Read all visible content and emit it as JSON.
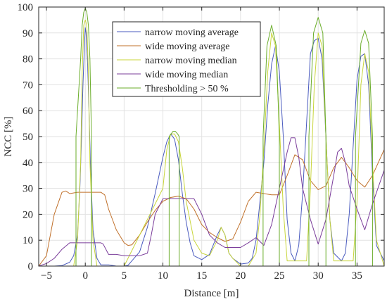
{
  "chart_data": {
    "type": "line",
    "title": "",
    "xlabel": "Distance [m]",
    "ylabel": "NCC [%]",
    "xlim": [
      -6,
      38.5
    ],
    "ylim": [
      0,
      100
    ],
    "xticks": [
      -5,
      0,
      5,
      10,
      15,
      20,
      25,
      30,
      35
    ],
    "yticks": [
      0,
      10,
      20,
      30,
      40,
      50,
      60,
      70,
      80,
      90,
      100
    ],
    "grid": true,
    "legend_position": "top-center",
    "series": [
      {
        "name": "narrow moving average",
        "color": "#4a5bbf",
        "x": [
          -6,
          -4,
          -3,
          -2,
          -1.5,
          -1,
          -0.7,
          -0.5,
          -0.3,
          -0.1,
          0,
          0.1,
          0.3,
          0.5,
          0.7,
          1,
          1.5,
          2,
          3,
          4,
          5,
          5.5,
          6,
          7,
          8,
          9,
          10,
          10.5,
          11,
          11.5,
          12,
          12.5,
          13,
          13.5,
          14,
          15,
          16,
          17,
          17.5,
          18,
          18.5,
          19,
          20,
          21,
          21.5,
          22,
          23,
          23.5,
          24,
          24.5,
          25,
          25.5,
          26,
          26.5,
          27,
          27.5,
          28,
          29,
          29.5,
          30,
          30.5,
          31,
          31.5,
          32,
          33,
          33.5,
          34,
          35,
          35.5,
          36,
          36.5,
          37,
          37.5,
          38.5
        ],
        "y": [
          0,
          0,
          0.2,
          1.5,
          4,
          12,
          30,
          48,
          70,
          86,
          92,
          90,
          78,
          58,
          36,
          14,
          3,
          0.5,
          0.5,
          0,
          0,
          0.3,
          2,
          5.5,
          15,
          28,
          42,
          48,
          51,
          49,
          41,
          28,
          17,
          9,
          4,
          2.5,
          4.5,
          12,
          15,
          12,
          5,
          3,
          0.8,
          1.2,
          3,
          10,
          40,
          62,
          78,
          85,
          75,
          50,
          18,
          5,
          2,
          8,
          28,
          82,
          87,
          88,
          80,
          50,
          18,
          5,
          2,
          5,
          20,
          72,
          81,
          82,
          70,
          35,
          8,
          2
        ]
      },
      {
        "name": "wide moving average",
        "color": "#c0702a",
        "x": [
          -6,
          -5,
          -4,
          -3,
          -2.5,
          -2,
          -1,
          0,
          1,
          2,
          2.5,
          3,
          4,
          5,
          5.5,
          6,
          7,
          8,
          9,
          10,
          11,
          12,
          13,
          14,
          15,
          16,
          17,
          18,
          19,
          20,
          21,
          22,
          23,
          24,
          25,
          26,
          27,
          28,
          29,
          30,
          31,
          32,
          33,
          34,
          35,
          36,
          37,
          38.5
        ],
        "y": [
          0,
          4,
          20,
          28.5,
          29,
          28,
          28.5,
          28.5,
          28.5,
          28.5,
          27.5,
          22,
          14,
          9,
          8,
          8.2,
          12,
          17,
          21.5,
          25,
          26.5,
          27,
          26,
          22,
          16,
          13,
          11,
          9.5,
          10.5,
          17,
          25,
          28.5,
          28,
          27.5,
          27.5,
          35,
          43,
          41,
          33,
          29.5,
          31,
          38,
          42,
          38,
          33,
          30.5,
          35,
          45
        ]
      },
      {
        "name": "narrow moving median",
        "color": "#c8d53a",
        "x": [
          -6,
          -1.5,
          -1,
          -0.6,
          -0.4,
          -0.2,
          0,
          0.2,
          0.4,
          0.6,
          1,
          1.5,
          5,
          10,
          10.5,
          11,
          11.5,
          12,
          12.5,
          13,
          14,
          15,
          16,
          17,
          17.5,
          18,
          18.5,
          19,
          20,
          21,
          22,
          22.5,
          23,
          23.5,
          24,
          24.5,
          25,
          25.5,
          26,
          28.5,
          29,
          29.5,
          30,
          30.5,
          31,
          31.5,
          32,
          34.5,
          35,
          35.5,
          36,
          36.5,
          37,
          37.5,
          38.5
        ],
        "y": [
          0,
          0,
          10,
          40,
          75,
          93,
          95,
          93,
          75,
          40,
          10,
          0,
          0,
          30,
          45,
          51,
          51,
          48,
          38,
          25,
          10,
          5,
          4,
          10,
          15,
          12,
          5,
          3,
          0,
          0,
          5,
          20,
          45,
          75,
          90,
          85,
          55,
          22,
          2,
          2,
          30,
          70,
          90,
          85,
          50,
          18,
          2,
          2,
          25,
          70,
          82,
          75,
          40,
          10,
          0
        ]
      },
      {
        "name": "wide moving median",
        "color": "#7a3c9a",
        "x": [
          -6,
          -5,
          -4,
          -3,
          -2,
          -1,
          0,
          1,
          2,
          2.3,
          3,
          4,
          5,
          6,
          7,
          8,
          8.5,
          9,
          10,
          11,
          12,
          13,
          14,
          15,
          16,
          17,
          18,
          19,
          20,
          21,
          22,
          23,
          24,
          25,
          26,
          26.5,
          27,
          27.5,
          28,
          29,
          30,
          31,
          32,
          32.5,
          33,
          33.5,
          34,
          35,
          36,
          37,
          38.5
        ],
        "y": [
          0,
          1,
          3,
          6.5,
          9,
          9,
          9,
          9,
          9,
          8.5,
          4.5,
          4.5,
          4,
          4,
          4,
          5,
          12,
          20,
          26,
          26,
          26,
          26,
          26,
          20,
          12,
          9,
          7.2,
          7.2,
          7.2,
          9,
          11,
          8,
          16,
          30,
          44,
          49.5,
          49.5,
          42,
          30,
          18,
          8.5,
          18,
          35,
          44,
          45.5,
          40,
          31,
          22,
          14,
          24,
          37
        ]
      },
      {
        "name": "Thresholding > 50 %",
        "color": "#6aad2a",
        "x": [
          -6,
          -1.2,
          -1.2,
          -0.6,
          -0.4,
          -0.2,
          0,
          0.2,
          0.4,
          0.6,
          0.8,
          0.8,
          10.8,
          10.8,
          11.3,
          11.6,
          11.9,
          12.1,
          12.1,
          22.9,
          22.9,
          23.4,
          24,
          24.6,
          25,
          25,
          28.8,
          28.8,
          29.4,
          30,
          30.6,
          31,
          31,
          34.8,
          34.8,
          35.5,
          36,
          36.5,
          37,
          37,
          38.5
        ],
        "y": [
          0,
          0,
          50,
          80,
          93,
          98,
          99.5,
          98,
          93,
          80,
          50,
          0,
          0,
          50,
          52,
          52,
          51,
          50,
          0,
          0,
          50,
          85,
          93,
          85,
          50,
          0,
          0,
          50,
          90,
          96,
          90,
          50,
          0,
          0,
          50,
          86,
          91,
          86,
          50,
          0,
          0
        ]
      }
    ]
  }
}
